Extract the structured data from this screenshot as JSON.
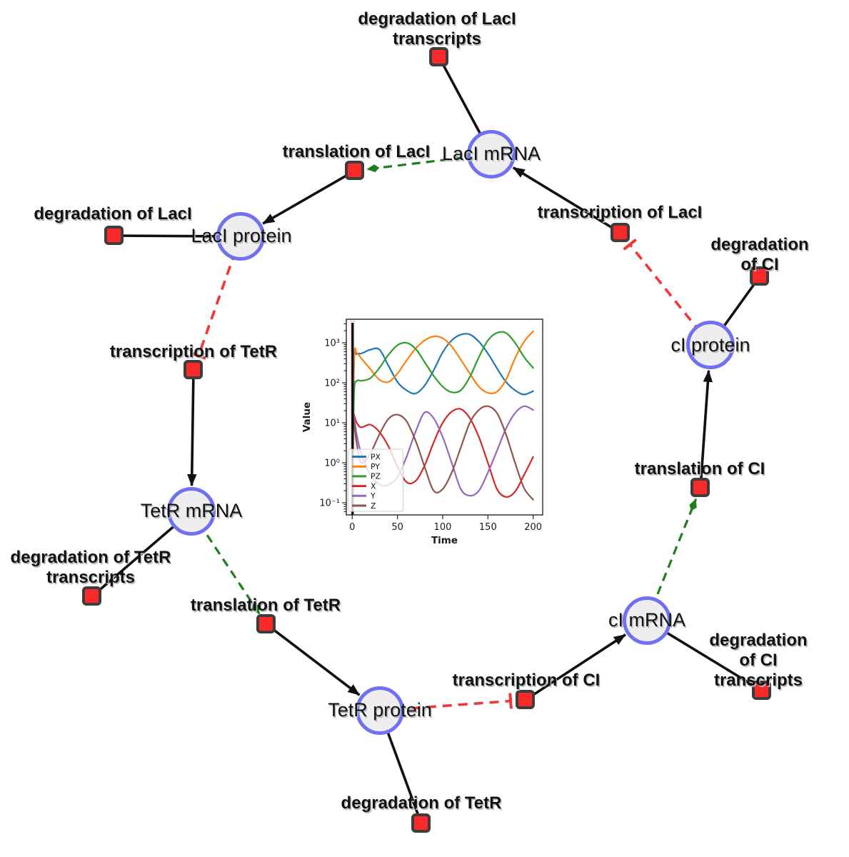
{
  "graph": {
    "species": [
      {
        "id": "laci-mrna",
        "label": "LacI mRNA"
      },
      {
        "id": "laci-protein",
        "label": "LacI protein"
      },
      {
        "id": "ci-protein",
        "label": "cI protein"
      },
      {
        "id": "tetr-mrna",
        "label": "TetR mRNA"
      },
      {
        "id": "tetr-protein",
        "label": "TetR protein"
      },
      {
        "id": "ci-mrna",
        "label": "cI mRNA"
      }
    ],
    "reactions": [
      {
        "id": "deg-laci-transcripts",
        "label": "degradation of LacI\ntranscripts"
      },
      {
        "id": "translation-laci",
        "label": "translation of LacI"
      },
      {
        "id": "degradation-laci",
        "label": "degradation of LacI"
      },
      {
        "id": "transcription-laci",
        "label": "transcription of LacI"
      },
      {
        "id": "degradation-ci",
        "label": "degradation of CI"
      },
      {
        "id": "transcription-tetr",
        "label": "transcription of TetR"
      },
      {
        "id": "translation-ci",
        "label": "translation of CI"
      },
      {
        "id": "deg-tetr-transcripts",
        "label": "degradation of TetR\ntranscripts"
      },
      {
        "id": "translation-tetr",
        "label": "translation of TetR"
      },
      {
        "id": "transcription-ci",
        "label": "transcription of CI"
      },
      {
        "id": "deg-ci-transcripts",
        "label": "degradation of CI\ntranscripts"
      },
      {
        "id": "degradation-tetr",
        "label": "degradation of TetR"
      }
    ],
    "edges": [
      {
        "source": "laci-mrna",
        "target": "deg-laci-transcripts",
        "kind": "reactant"
      },
      {
        "source": "transcription-laci",
        "target": "laci-mrna",
        "kind": "product"
      },
      {
        "source": "laci-mrna",
        "target": "translation-laci",
        "kind": "modifier"
      },
      {
        "source": "translation-laci",
        "target": "laci-protein",
        "kind": "product"
      },
      {
        "source": "laci-protein",
        "target": "degradation-laci",
        "kind": "reactant"
      },
      {
        "source": "laci-protein",
        "target": "transcription-tetr",
        "kind": "inhibition"
      },
      {
        "source": "transcription-tetr",
        "target": "tetr-mrna",
        "kind": "product"
      },
      {
        "source": "tetr-mrna",
        "target": "deg-tetr-transcripts",
        "kind": "reactant"
      },
      {
        "source": "tetr-mrna",
        "target": "translation-tetr",
        "kind": "modifier"
      },
      {
        "source": "translation-tetr",
        "target": "tetr-protein",
        "kind": "product"
      },
      {
        "source": "tetr-protein",
        "target": "degradation-tetr",
        "kind": "reactant"
      },
      {
        "source": "tetr-protein",
        "target": "transcription-ci",
        "kind": "inhibition"
      },
      {
        "source": "transcription-ci",
        "target": "ci-mrna",
        "kind": "product"
      },
      {
        "source": "ci-mrna",
        "target": "deg-ci-transcripts",
        "kind": "reactant"
      },
      {
        "source": "ci-mrna",
        "target": "translation-ci",
        "kind": "modifier"
      },
      {
        "source": "translation-ci",
        "target": "ci-protein",
        "kind": "product"
      },
      {
        "source": "ci-protein",
        "target": "degradation-ci",
        "kind": "reactant"
      },
      {
        "source": "ci-protein",
        "target": "transcription-laci",
        "kind": "inhibition"
      }
    ],
    "colors": {
      "species_fill": "#eeeef1",
      "species_border": "#7070f2",
      "reaction_fill": "#fb2a2a",
      "reaction_border": "#3d3d3d",
      "edge_reactant_product": "#111111",
      "edge_modifier_activation": "#1e7e1e",
      "edge_inhibition": "#f23535"
    }
  },
  "chart_data": {
    "type": "line",
    "title": "",
    "xlabel": "Time",
    "ylabel": "Value",
    "y_scale": "log",
    "grid": false,
    "legend_position": "lower left",
    "xlim": [
      -6.5,
      210.5
    ],
    "ylim_exponents": [
      -1.3,
      3.59
    ],
    "x_ticks": [
      "0",
      "50",
      "100",
      "150",
      "200"
    ],
    "x_tick_values": [
      0,
      50,
      100,
      150,
      200
    ],
    "y_ticks": [
      "10⁻¹",
      "10⁰",
      "10¹",
      "10²",
      "10³"
    ],
    "y_tick_exponents": [
      -1,
      0,
      1,
      2,
      3
    ],
    "initial_event_line_t": 0.4,
    "initial_event_band_t": [
      -2.5,
      3
    ],
    "x": [
      0,
      2,
      5,
      10,
      20,
      30,
      40,
      50,
      60,
      70,
      80,
      90,
      100,
      110,
      120,
      130,
      140,
      150,
      160,
      170,
      180,
      190,
      200
    ],
    "series": [
      {
        "name": "PX",
        "color": "#1f77b4",
        "values": [
          0.15,
          300,
          520,
          540,
          670,
          680,
          270,
          105,
          65,
          54,
          85,
          205,
          580,
          1150,
          1600,
          1620,
          1070,
          540,
          230,
          105,
          65,
          51,
          62
        ]
      },
      {
        "name": "PY",
        "color": "#ff7f0e",
        "values": [
          0.15,
          350,
          550,
          410,
          220,
          120,
          105,
          170,
          360,
          710,
          1150,
          1450,
          1300,
          810,
          380,
          170,
          80,
          56,
          60,
          120,
          410,
          1070,
          1950
        ]
      },
      {
        "name": "PZ",
        "color": "#2ca02c",
        "values": [
          0.15,
          50,
          110,
          112,
          130,
          235,
          500,
          870,
          1000,
          710,
          330,
          150,
          80,
          58,
          65,
          140,
          440,
          1150,
          1780,
          1760,
          1000,
          440,
          235
        ]
      },
      {
        "name": "X",
        "color": "#d62728",
        "values": [
          20,
          16,
          10,
          7.7,
          9,
          5.9,
          2.6,
          0.8,
          0.33,
          0.35,
          0.85,
          3.2,
          10,
          19,
          22,
          13,
          4.4,
          1.0,
          0.22,
          0.14,
          0.19,
          0.5,
          1.4
        ]
      },
      {
        "name": "Y",
        "color": "#9467bd",
        "values": [
          22,
          14,
          5.1,
          1.7,
          0.5,
          0.29,
          0.28,
          0.44,
          1.4,
          5.9,
          18,
          13,
          4.4,
          1.0,
          0.22,
          0.15,
          0.2,
          0.57,
          2.0,
          7.2,
          17.5,
          26,
          21
        ]
      },
      {
        "name": "Z",
        "color": "#8c564b",
        "values": [
          22,
          10,
          3.0,
          1.0,
          1.7,
          5.1,
          12.5,
          16,
          11,
          3.6,
          0.8,
          0.2,
          0.22,
          0.57,
          2.4,
          10,
          21,
          26,
          17.5,
          5.1,
          1.0,
          0.23,
          0.12
        ]
      }
    ]
  }
}
